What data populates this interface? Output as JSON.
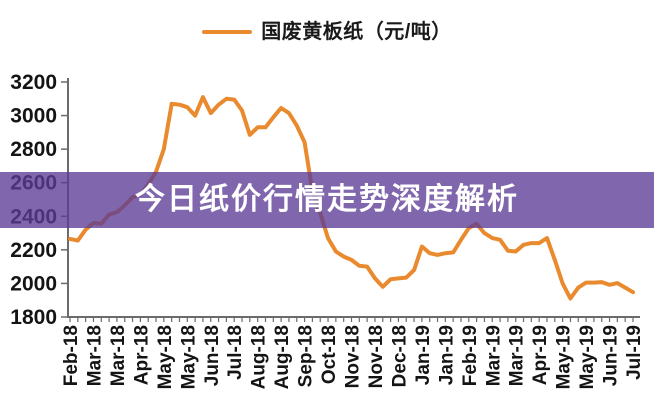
{
  "banner": {
    "title": "今日纸价行情走势深度解析"
  },
  "legend": {
    "label": "国废黄板纸（元/吨）"
  },
  "colors": {
    "line": "#E98A2E",
    "banner_overlay": "rgba(92,60,150,0.78)",
    "axis": "#6b6b6b",
    "tick": "#6b6b6b",
    "label_text": "#141414",
    "banner_text": "#ffffff"
  },
  "chart_data": {
    "type": "line",
    "title": "",
    "legend_entries": [
      "国废黄板纸（元/吨）"
    ],
    "series_name": "国废黄板纸（元/吨）",
    "unit": "元/吨",
    "ylim": [
      1800,
      3200
    ],
    "y_ticks": [
      1800,
      2000,
      2200,
      2400,
      2600,
      2800,
      3000,
      3200
    ],
    "grid": false,
    "legend_position": "top-center",
    "x_tick_labels": [
      "Feb-18",
      "Mar-18",
      "Mar-18",
      "Apr-18",
      "May-18",
      "May-18",
      "Jun-18",
      "Jul-18",
      "Aug-18",
      "Aug-18",
      "Sep-18",
      "Oct-18",
      "Nov-18",
      "Nov-18",
      "Dec-18",
      "Jan-19",
      "Jan-19",
      "Feb-19",
      "Mar-19",
      "Mar-19",
      "Apr-19",
      "May-19",
      "May-19",
      "Jun-19",
      "Jul-19"
    ],
    "label_every_n_points": 3,
    "values": [
      2265,
      2255,
      2320,
      2360,
      2355,
      2410,
      2425,
      2465,
      2515,
      2530,
      2590,
      2665,
      2800,
      3070,
      3065,
      3050,
      3000,
      3110,
      3015,
      3065,
      3100,
      3095,
      3030,
      2885,
      2930,
      2930,
      2990,
      3045,
      3015,
      2940,
      2840,
      2550,
      2420,
      2270,
      2190,
      2160,
      2140,
      2105,
      2100,
      2030,
      1980,
      2025,
      2030,
      2035,
      2080,
      2220,
      2180,
      2170,
      2180,
      2185,
      2260,
      2330,
      2355,
      2300,
      2270,
      2260,
      2195,
      2190,
      2230,
      2240,
      2240,
      2270,
      2140,
      2000,
      1910,
      1975,
      2005,
      2005,
      2008,
      1992,
      2002,
      1975,
      1948
    ]
  }
}
